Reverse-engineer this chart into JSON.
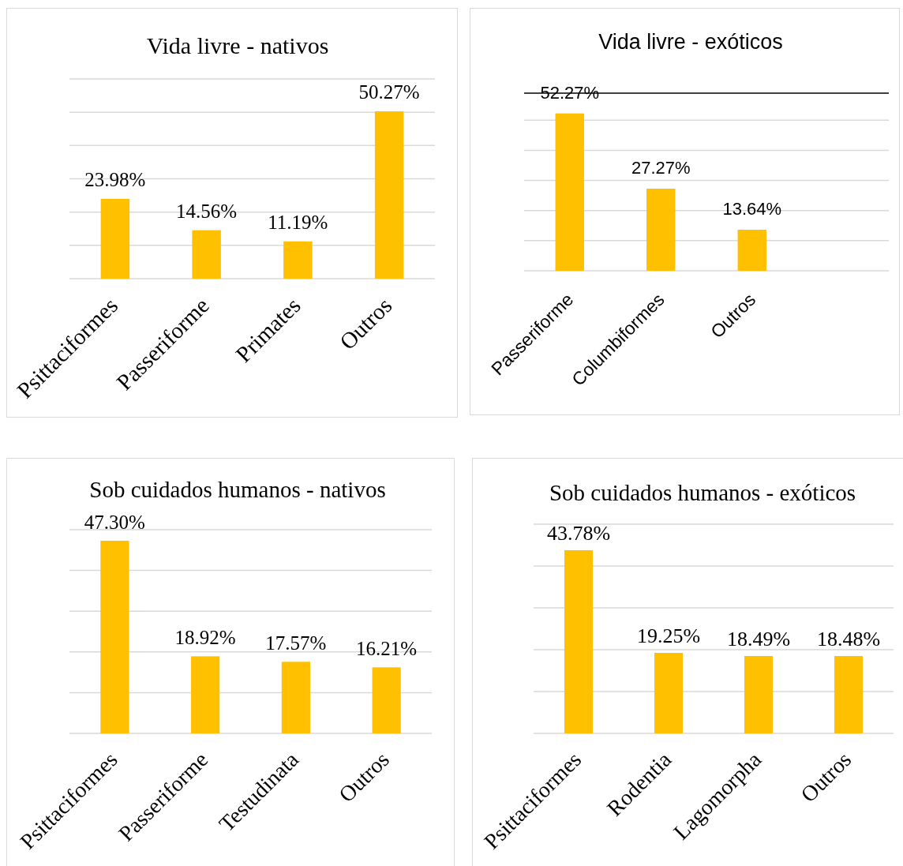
{
  "chart_data": [
    {
      "type": "bar",
      "title": "Vida livre - nativos",
      "categories": [
        "Psittaciformes",
        "Passeriforme",
        "Primates",
        "Outros"
      ],
      "values": [
        23.98,
        14.56,
        11.19,
        50.27
      ],
      "value_labels": [
        "23.98%",
        "14.56%",
        "11.19%",
        "50.27%"
      ],
      "color": "#ffc000",
      "ylim": [
        0,
        60
      ],
      "yticks": [
        {
          "value": 0,
          "label": null
        },
        {
          "value": 10,
          "label": null
        },
        {
          "value": 20,
          "label": null
        },
        {
          "value": 30,
          "label": null
        },
        {
          "value": 40,
          "label": null
        },
        {
          "value": 50,
          "label": null
        },
        {
          "value": 60,
          "label": null
        }
      ],
      "grid": "y",
      "tick_labels": "x"
    },
    {
      "type": "bar",
      "title": "Vida livre - exóticos",
      "categories": [
        "Passeriforme",
        "Columbiformes",
        "Outros",
        null
      ],
      "values": [
        52.27,
        27.27,
        13.64,
        null
      ],
      "value_labels": [
        "52.27%",
        "27.27%",
        "13.64%",
        null
      ],
      "color": "#ffc000",
      "ylim": [
        0,
        59
      ],
      "yticks": [
        {
          "value": 0,
          "label": null
        },
        {
          "value": 10,
          "label": null
        },
        {
          "value": 20,
          "label": null
        },
        {
          "value": 30,
          "label": null
        },
        {
          "value": 40,
          "label": null
        },
        {
          "value": 50,
          "label": null
        }
      ],
      "grid": "y",
      "tick_labels": "x",
      "ref_lines": [
        {
          "axis": "y",
          "value": 59,
          "color": "#000000"
        }
      ]
    },
    {
      "type": "bar",
      "title": "Sob cuidados humanos - nativos",
      "categories": [
        "Psittaciformes",
        "Passeriforme",
        "Testudinata",
        "Outros"
      ],
      "values": [
        47.3,
        18.92,
        17.57,
        16.21
      ],
      "value_labels": [
        "47.30%",
        "18.92%",
        "17.57%",
        "16.21%"
      ],
      "color": "#ffc000",
      "ylim": [
        0,
        50
      ],
      "yticks": [
        {
          "value": 0,
          "label": null
        },
        {
          "value": 10,
          "label": null
        },
        {
          "value": 20,
          "label": null
        },
        {
          "value": 30,
          "label": null
        },
        {
          "value": 40,
          "label": null
        },
        {
          "value": 50,
          "label": null
        }
      ],
      "grid": "y",
      "tick_labels": "x"
    },
    {
      "type": "bar",
      "title": "Sob cuidados humanos - exóticos",
      "categories": [
        "Psittaciformes",
        "Rodentia",
        "Lagomorpha",
        "Outros"
      ],
      "values": [
        43.78,
        19.25,
        18.49,
        18.48
      ],
      "value_labels": [
        "43.78%",
        "19.25%",
        "18.49%",
        "18.48%"
      ],
      "color": "#ffc000",
      "ylim": [
        0,
        50
      ],
      "yticks": [
        {
          "value": 0,
          "label": null
        },
        {
          "value": 10,
          "label": null
        },
        {
          "value": 20,
          "label": null
        },
        {
          "value": 30,
          "label": null
        },
        {
          "value": 40,
          "label": null
        },
        {
          "value": 50,
          "label": null
        }
      ],
      "grid": "y",
      "tick_labels": "x"
    }
  ]
}
